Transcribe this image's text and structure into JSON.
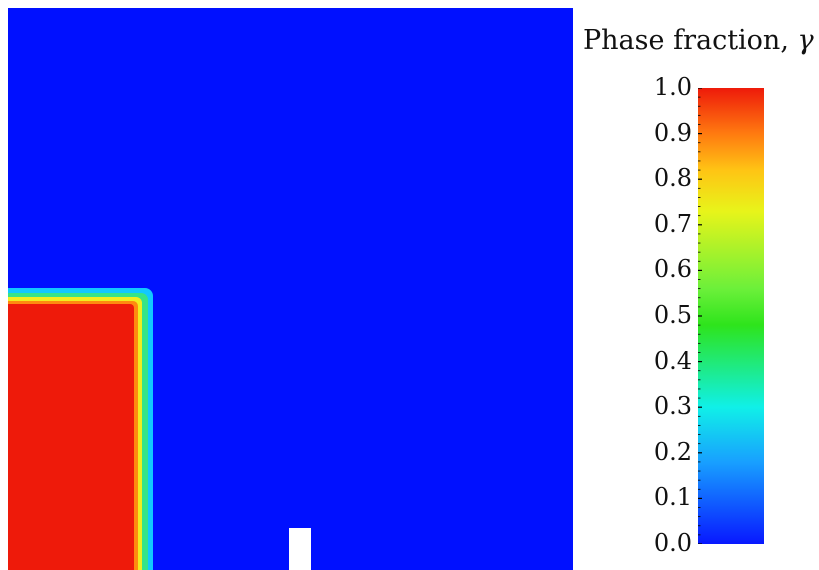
{
  "colorbar": {
    "title": "Phase fraction, ",
    "symbol": "γ",
    "min": 0.0,
    "max": 1.0,
    "labels": [
      "1.0",
      "0.9",
      "0.8",
      "0.7",
      "0.6",
      "0.5",
      "0.4",
      "0.3",
      "0.2",
      "0.1",
      "0.0"
    ],
    "colors": [
      "#0818ff",
      "#18a0ff",
      "#10f0e8",
      "#2ee41c",
      "#6cf03a",
      "#e8f41a",
      "#ffc414",
      "#ff7a10",
      "#ee1a0a"
    ]
  },
  "field": {
    "background_color": "#0010ff",
    "fluid_core_color": "#ee1a0a",
    "obstacle_color": "#ffffff"
  }
}
